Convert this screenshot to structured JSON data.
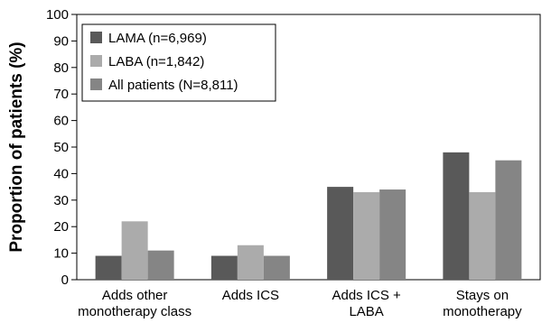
{
  "chart_data": {
    "type": "bar",
    "title": "",
    "xlabel": "",
    "ylabel": "Proportion of patients (%)",
    "ylim": [
      0,
      100
    ],
    "yticks": [
      0,
      10,
      20,
      30,
      40,
      50,
      60,
      70,
      80,
      90,
      100
    ],
    "grid": false,
    "legend_position": "top-left",
    "categories": [
      [
        "Adds other",
        "monotherapy class"
      ],
      [
        "Adds ICS"
      ],
      [
        "Adds ICS +",
        "LABA"
      ],
      [
        "Stays on",
        "monotherapy"
      ]
    ],
    "series": [
      {
        "name": "LAMA (n=6,969)",
        "color": "#595959",
        "values": [
          9,
          9,
          35,
          48
        ]
      },
      {
        "name": "LABA (n=1,842)",
        "color": "#ababab",
        "values": [
          22,
          13,
          33,
          33
        ]
      },
      {
        "name": "All patients (N=8,811)",
        "color": "#858585",
        "values": [
          11,
          9,
          34,
          45
        ]
      }
    ]
  }
}
